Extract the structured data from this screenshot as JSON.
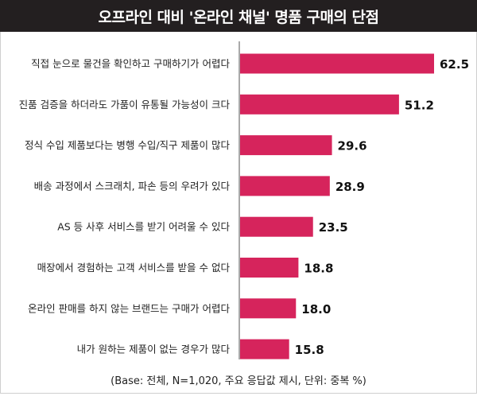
{
  "title": "오프라인 대비 '온라인 채널' 명품 구매의 단점",
  "footnote": "(Base: 전체, N=1,020, 주요 응답값 제시, 단위: 중복 %)",
  "colors": {
    "bar": "#d6245c",
    "title_bg": "#231f20",
    "axis": "#555555"
  },
  "chart_data": {
    "type": "bar",
    "orientation": "horizontal",
    "title": "오프라인 대비 '온라인 채널' 명품 구매의 단점",
    "categories": [
      "직접 눈으로 물건을 확인하고 구매하기가 어렵다",
      "진품 검증을 하더라도 가품이 유통될 가능성이 크다",
      "정식 수입 제품보다는 병행 수입/직구 제품이 많다",
      "배송 과정에서 스크래치, 파손 등의 우려가 있다",
      "AS 등 사후 서비스를 받기 어려울 수 있다",
      "매장에서 경험하는 고객 서비스를 받을 수 없다",
      "온라인 판매를 하지 않는 브랜드는 구매가 어렵다",
      "내가 원하는 제품이 없는 경우가 많다"
    ],
    "values": [
      62.5,
      51.2,
      29.6,
      28.9,
      23.5,
      18.8,
      18.0,
      15.8
    ],
    "value_labels": [
      "62.5",
      "51.2",
      "29.6",
      "28.9",
      "23.5",
      "18.8",
      "18.0",
      "15.8"
    ],
    "xlim": [
      0,
      62.5
    ]
  }
}
